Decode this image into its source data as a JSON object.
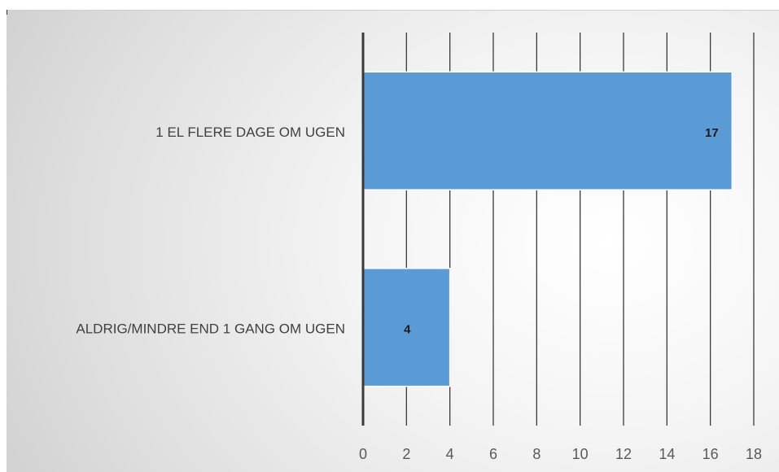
{
  "chart_data": {
    "type": "bar",
    "orientation": "horizontal",
    "categories": [
      "1 EL FLERE DAGE OM UGEN",
      "ALDRIG/MINDRE END 1 GANG OM UGEN"
    ],
    "values": [
      17,
      4
    ],
    "data_labels": [
      "17",
      "4"
    ],
    "xlim": [
      0,
      18
    ],
    "x_ticks": [
      0,
      2,
      4,
      6,
      8,
      10,
      12,
      14,
      16,
      18
    ],
    "grid": true,
    "legend": "none",
    "colors": {
      "bar_fill": "#5b9bd5",
      "bar_stroke": "#ffffff",
      "grid": "#3a3a3a",
      "axis": "#3a3a3a",
      "category_text": "#404040",
      "tick_text": "#595959",
      "data_label_text": "#1a1a1a"
    }
  }
}
